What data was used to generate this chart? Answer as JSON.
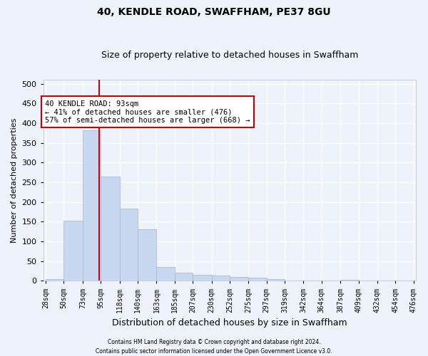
{
  "title": "40, KENDLE ROAD, SWAFFHAM, PE37 8GU",
  "subtitle": "Size of property relative to detached houses in Swaffham",
  "xlabel": "Distribution of detached houses by size in Swaffham",
  "ylabel": "Number of detached properties",
  "footer_line1": "Contains HM Land Registry data © Crown copyright and database right 2024.",
  "footer_line2": "Contains public sector information licensed under the Open Government Licence v3.0.",
  "bar_edges": [
    28,
    50,
    73,
    95,
    118,
    140,
    163,
    185,
    207,
    230,
    252,
    275,
    297,
    319,
    342,
    364,
    387,
    409,
    432,
    454,
    476
  ],
  "bar_heights": [
    5,
    153,
    381,
    265,
    183,
    130,
    35,
    20,
    15,
    13,
    10,
    8,
    5,
    0,
    0,
    0,
    3,
    0,
    0,
    0
  ],
  "tick_labels": [
    "28sqm",
    "50sqm",
    "73sqm",
    "95sqm",
    "118sqm",
    "140sqm",
    "163sqm",
    "185sqm",
    "207sqm",
    "230sqm",
    "252sqm",
    "275sqm",
    "297sqm",
    "319sqm",
    "342sqm",
    "364sqm",
    "387sqm",
    "409sqm",
    "432sqm",
    "454sqm",
    "476sqm"
  ],
  "bar_color": "#c8d8f0",
  "bar_edge_color": "#aabbdd",
  "vline_x": 93,
  "vline_color": "#cc0000",
  "annotation_text": "40 KENDLE ROAD: 93sqm\n← 41% of detached houses are smaller (476)\n57% of semi-detached houses are larger (668) →",
  "annotation_box_facecolor": "#ffffff",
  "annotation_box_edgecolor": "#cc0000",
  "ylim": [
    0,
    510
  ],
  "yticks": [
    0,
    50,
    100,
    150,
    200,
    250,
    300,
    350,
    400,
    450,
    500
  ],
  "background_color": "#eef2fb",
  "grid_color": "#ffffff",
  "title_fontsize": 10,
  "subtitle_fontsize": 9,
  "ylabel_fontsize": 8,
  "xlabel_fontsize": 9,
  "tick_fontsize": 7,
  "ytick_fontsize": 8,
  "annotation_fontsize": 7.5,
  "figsize": [
    6.0,
    5.0
  ],
  "dpi": 100
}
